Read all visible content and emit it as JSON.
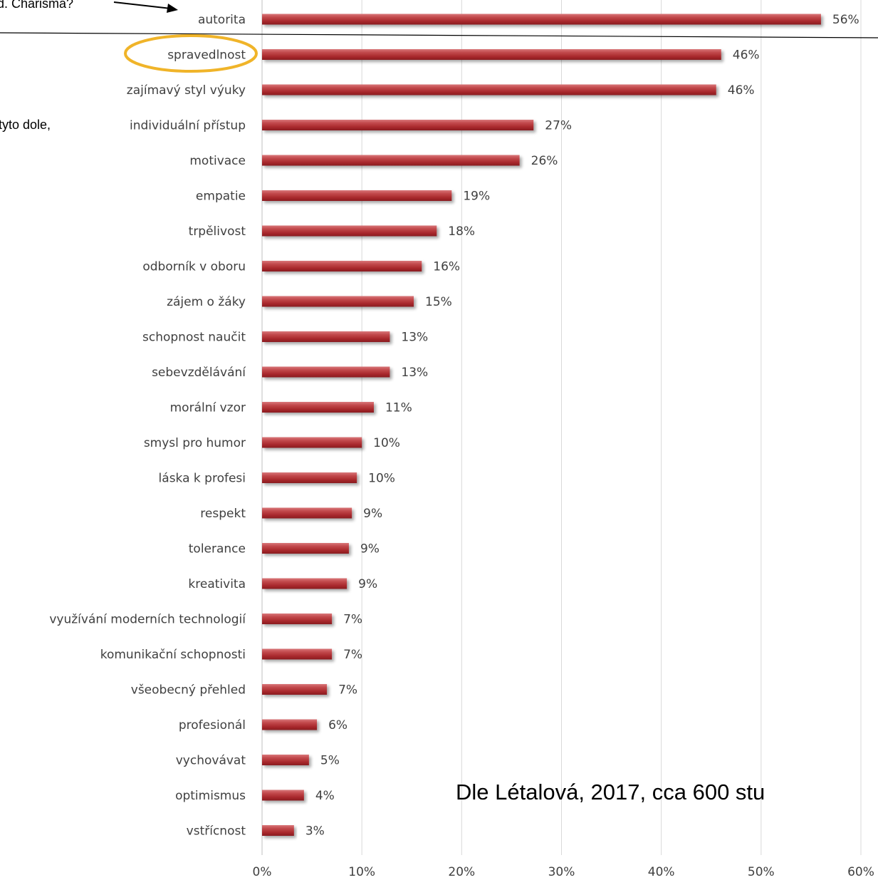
{
  "chart_data": {
    "type": "bar",
    "orientation": "horizontal",
    "categories": [
      "autorita",
      "spravedlnost",
      "zajímavý styl výuky",
      "individuální přístup",
      "motivace",
      "empatie",
      "trpělivost",
      "odborník v oboru",
      "zájem o žáky",
      "schopnost naučit",
      "sebevzdělávání",
      "morální vzor",
      "smysl pro humor",
      "láska k profesi",
      "respekt",
      "tolerance",
      "kreativita",
      "využívání moderních technologií",
      "komunikační schopnosti",
      "všeobecný přehled",
      "profesionál",
      "vychovávat",
      "optimismus",
      "vstřícnost"
    ],
    "values": [
      56,
      46,
      46,
      27,
      26,
      19,
      18,
      16,
      15,
      13,
      13,
      11,
      10,
      10,
      9,
      9,
      9,
      7,
      7,
      7,
      6,
      5,
      4,
      3
    ],
    "display_values": [
      56,
      46,
      45.5,
      27.2,
      25.8,
      19,
      17.5,
      16,
      15.2,
      12.8,
      12.8,
      11.2,
      10,
      9.5,
      9,
      8.7,
      8.5,
      7,
      7,
      6.5,
      5.5,
      4.7,
      4.2,
      3.2
    ],
    "value_labels": [
      "56%",
      "46%",
      "46%",
      "27%",
      "26%",
      "19%",
      "18%",
      "16%",
      "15%",
      "13%",
      "13%",
      "11%",
      "10%",
      "10%",
      "9%",
      "9%",
      "9%",
      "7%",
      "7%",
      "7%",
      "6%",
      "5%",
      "4%",
      "3%"
    ],
    "xticks": [
      0,
      10,
      20,
      30,
      40,
      50,
      60
    ],
    "xtick_labels": [
      "0%",
      "10%",
      "20%",
      "30%",
      "40%",
      "50%",
      "60%"
    ],
    "xlim": [
      0,
      60
    ],
    "grid": "vertical",
    "bar_color": "#b5383a",
    "title": "",
    "xlabel": "",
    "ylabel": ""
  },
  "annotations": {
    "top_left_text": "d. Charisma?",
    "side_text": "tyto dole,",
    "source": "Dle Létalová, 2017, cca 600 stu",
    "highlight_color": "#f0b429"
  }
}
